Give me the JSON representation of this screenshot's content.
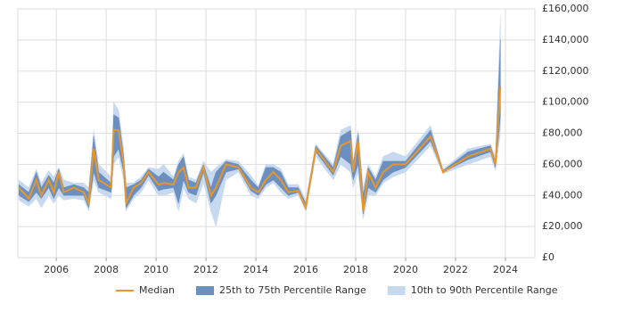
{
  "chart_data": {
    "type": "line",
    "x": [
      2004.5,
      2004.9,
      2005.2,
      2005.4,
      2005.7,
      2005.9,
      2006.1,
      2006.3,
      2006.7,
      2007.1,
      2007.3,
      2007.5,
      2007.7,
      2008.2,
      2008.3,
      2008.5,
      2008.7,
      2008.8,
      2009.1,
      2009.4,
      2009.7,
      2010.1,
      2010.3,
      2010.7,
      2010.9,
      2011.1,
      2011.3,
      2011.6,
      2011.9,
      2012.2,
      2012.4,
      2012.8,
      2013.3,
      2013.8,
      2014.1,
      2014.4,
      2014.7,
      2015.0,
      2015.3,
      2015.7,
      2016.0,
      2016.4,
      2017.1,
      2017.4,
      2017.8,
      2017.9,
      2018.1,
      2018.3,
      2018.5,
      2018.8,
      2019.1,
      2019.5,
      2020.0,
      2021.0,
      2021.5,
      2022.5,
      2023.4,
      2023.6,
      2023.8
    ],
    "series": [
      {
        "name": "10th to 90th Percentile Range",
        "color": "#c6d9ee",
        "low": [
          37000,
          33000,
          38000,
          32000,
          40000,
          35000,
          40000,
          37000,
          38000,
          37000,
          30000,
          50000,
          42000,
          38000,
          60000,
          65000,
          50000,
          30000,
          38000,
          42000,
          50000,
          40000,
          40000,
          42000,
          30000,
          45000,
          38000,
          35000,
          48000,
          30000,
          20000,
          50000,
          55000,
          40000,
          38000,
          45000,
          48000,
          42000,
          38000,
          40000,
          30000,
          65000,
          50000,
          60000,
          55000,
          45000,
          55000,
          25000,
          40000,
          40000,
          48000,
          52000,
          55000,
          72000,
          54000,
          60000,
          65000,
          56000,
          80000
        ],
        "high": [
          50000,
          45000,
          57000,
          48000,
          56000,
          52000,
          58000,
          50000,
          48000,
          48000,
          45000,
          82000,
          60000,
          52000,
          100000,
          95000,
          70000,
          48000,
          48000,
          52000,
          58000,
          57000,
          60000,
          52000,
          62000,
          67000,
          52000,
          50000,
          62000,
          55000,
          58000,
          63000,
          62000,
          53000,
          46000,
          60000,
          60000,
          57000,
          47000,
          47000,
          37000,
          73000,
          60000,
          82000,
          85000,
          62000,
          82000,
          45000,
          60000,
          52000,
          65000,
          68000,
          65000,
          85000,
          57000,
          70000,
          73000,
          65000,
          155000
        ]
      },
      {
        "name": "25th to 75th Percentile Range",
        "color": "#6b8fbe",
        "low": [
          40000,
          36000,
          42000,
          38000,
          45000,
          38000,
          45000,
          40000,
          40000,
          40000,
          32000,
          55000,
          45000,
          42000,
          65000,
          70000,
          55000,
          32000,
          40000,
          45000,
          53000,
          43000,
          44000,
          45000,
          35000,
          50000,
          42000,
          40000,
          55000,
          35000,
          40000,
          55000,
          57000,
          43000,
          40000,
          47000,
          50000,
          45000,
          40000,
          42000,
          31000,
          68000,
          53000,
          65000,
          60000,
          50000,
          60000,
          28000,
          45000,
          42000,
          50000,
          55000,
          58000,
          75000,
          55000,
          63000,
          68000,
          58000,
          90000
        ],
        "high": [
          47000,
          42000,
          55000,
          45000,
          53000,
          48000,
          57000,
          45000,
          47000,
          45000,
          42000,
          78000,
          55000,
          48000,
          92000,
          90000,
          65000,
          45000,
          47000,
          50000,
          57000,
          52000,
          55000,
          50000,
          60000,
          65000,
          50000,
          48000,
          60000,
          45000,
          55000,
          62000,
          60000,
          50000,
          45000,
          58000,
          58000,
          55000,
          45000,
          45000,
          35000,
          72000,
          58000,
          78000,
          82000,
          60000,
          80000,
          40000,
          58000,
          50000,
          62000,
          62000,
          62000,
          82000,
          56000,
          68000,
          72000,
          62000,
          140000
        ]
      },
      {
        "name": "Median",
        "color": "#e8962a",
        "values": [
          45000,
          38000,
          50000,
          40000,
          50000,
          42000,
          55000,
          42000,
          45000,
          42000,
          35000,
          70000,
          50000,
          45000,
          82000,
          82000,
          60000,
          35000,
          45000,
          48000,
          55000,
          47000,
          48000,
          47000,
          55000,
          58000,
          45000,
          45000,
          58000,
          40000,
          45000,
          60000,
          58000,
          45000,
          42000,
          50000,
          55000,
          50000,
          42000,
          43000,
          32000,
          70000,
          55000,
          72000,
          75000,
          55000,
          75000,
          30000,
          55000,
          45000,
          55000,
          60000,
          60000,
          78000,
          55000,
          65000,
          70000,
          60000,
          110000
        ]
      }
    ],
    "xlim": [
      2004.46,
      2025.18
    ],
    "xticks": [
      2006,
      2008,
      2010,
      2012,
      2014,
      2016,
      2018,
      2020,
      2022,
      2024
    ],
    "ylim": [
      0,
      160000
    ],
    "yticks": [
      {
        "value": 0,
        "label": "£0"
      },
      {
        "value": 20000,
        "label": "£20,000"
      },
      {
        "value": 40000,
        "label": "£40,000"
      },
      {
        "value": 60000,
        "label": "£60,000"
      },
      {
        "value": 80000,
        "label": "£80,000"
      },
      {
        "value": 100000,
        "label": "£100,000"
      },
      {
        "value": 120000,
        "label": "£120,000"
      },
      {
        "value": 140000,
        "label": "£140,000"
      },
      {
        "value": 160000,
        "label": "£160,000"
      }
    ],
    "grid": true
  }
}
